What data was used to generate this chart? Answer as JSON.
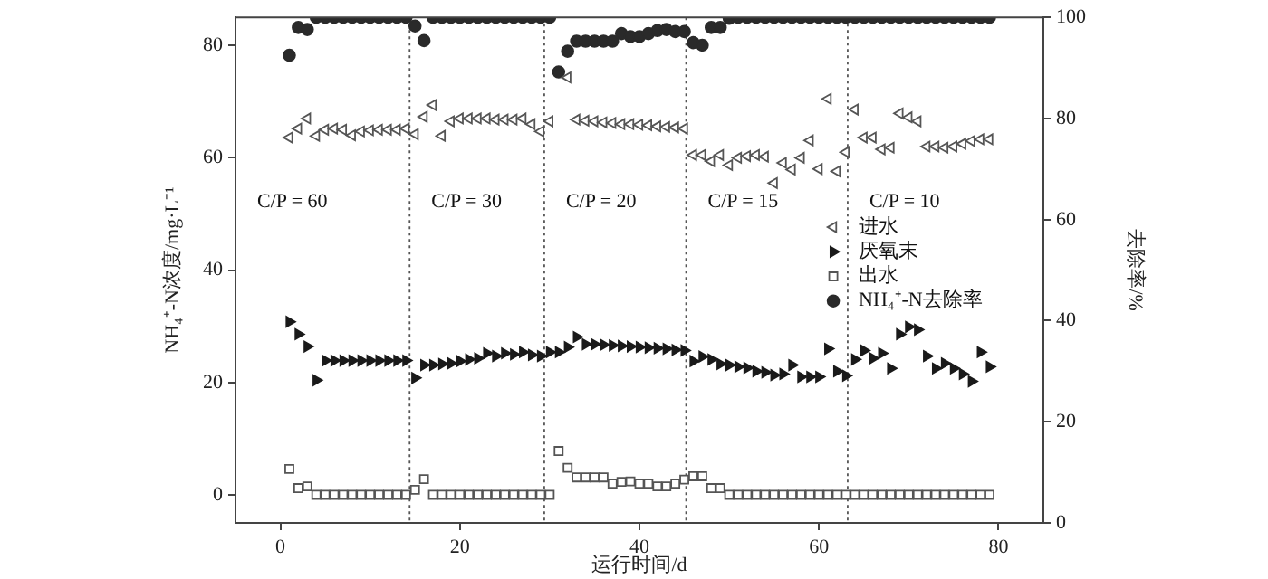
{
  "chart_data": {
    "type": "scatter",
    "xlabel": "运行时间/d",
    "ylabel": "NH₄⁺-N浓度/mg·L⁻¹",
    "y2label": "去除率/%",
    "xlim": [
      -5,
      85
    ],
    "xticks": [
      0,
      20,
      40,
      60,
      80
    ],
    "ylim": [
      -5,
      85
    ],
    "yticks": [
      0,
      20,
      40,
      60,
      80
    ],
    "y2lim": [
      0,
      100
    ],
    "y2ticks": [
      0,
      20,
      40,
      60,
      80,
      100
    ],
    "grid": false,
    "legend": "right",
    "x": [
      1,
      2,
      3,
      4,
      5,
      6,
      7,
      8,
      9,
      10,
      11,
      12,
      13,
      14,
      15,
      16,
      17,
      18,
      19,
      20,
      21,
      22,
      23,
      24,
      25,
      26,
      27,
      28,
      29,
      30,
      31,
      32,
      33,
      34,
      35,
      36,
      37,
      38,
      39,
      40,
      41,
      42,
      43,
      44,
      45,
      46,
      47,
      48,
      49,
      50,
      51,
      52,
      53,
      54,
      55,
      56,
      57,
      58,
      59,
      60,
      61,
      62,
      63,
      64,
      65,
      66,
      67,
      68,
      69,
      70,
      71,
      72,
      73,
      74,
      75,
      76,
      77,
      78,
      79
    ],
    "series": [
      {
        "name": "进水",
        "color": "#555555",
        "marker": "triangle",
        "values": [
          63.6,
          65.2,
          67,
          63.9,
          65,
          65.2,
          65,
          64,
          64.7,
          64.9,
          65,
          65,
          65,
          65.2,
          64.2,
          67.3,
          69.4,
          63.9,
          66.5,
          67,
          67,
          67,
          67,
          66.8,
          66.8,
          66.8,
          67,
          66,
          64.7,
          66.5,
          null,
          74.3,
          66.8,
          66.6,
          66.5,
          66.3,
          66.2,
          66,
          66,
          65.9,
          65.8,
          65.6,
          65.5,
          65.4,
          65.2,
          60.5,
          60.5,
          59.4,
          60.5,
          58.7,
          60,
          60.3,
          60.5,
          60.2,
          55.5,
          59.1,
          57.9,
          60,
          63.1,
          58,
          70.5,
          57.6,
          61,
          68.6,
          63.6,
          63.6,
          61.5,
          61.8,
          67.9,
          67.2,
          66.5,
          62,
          62,
          61.8,
          62,
          62.5,
          63,
          63.3,
          63.3
        ]
      },
      {
        "name": "厌氧末",
        "color": "#1a1a1a",
        "marker": "triangle",
        "values": [
          30.8,
          28.6,
          26.4,
          20.4,
          23.9,
          23.9,
          23.9,
          23.9,
          23.9,
          23.9,
          23.9,
          23.9,
          23.9,
          23.9,
          20.8,
          23.1,
          23.1,
          23.3,
          23.4,
          23.8,
          24.1,
          24.3,
          25.2,
          24.7,
          25.2,
          25,
          25.4,
          24.9,
          24.7,
          25.4,
          25.4,
          26.3,
          28.1,
          26.8,
          26.8,
          26.7,
          26.6,
          26.5,
          26.4,
          26.3,
          26.2,
          26.1,
          26,
          25.8,
          25.7,
          23.8,
          24.6,
          24.1,
          23.3,
          23.1,
          22.8,
          22.6,
          22,
          21.8,
          21.3,
          21.5,
          23.1,
          21,
          21,
          21,
          26,
          22,
          21.2,
          24.1,
          25.7,
          24.3,
          25.2,
          22.5,
          28.6,
          29.9,
          29.4,
          24.7,
          22.5,
          23.4,
          22.5,
          21.5,
          20.2,
          25.4,
          22.8
        ]
      },
      {
        "name": "出水",
        "color": "#555555",
        "marker": "square",
        "values": [
          4.6,
          1.2,
          1.5,
          0,
          0,
          0,
          0,
          0,
          0,
          0,
          0,
          0,
          0,
          0,
          0.9,
          2.8,
          0,
          0,
          0,
          0,
          0,
          0,
          0,
          0,
          0,
          0,
          0,
          0,
          0,
          0,
          7.8,
          4.8,
          3.1,
          3.1,
          3.1,
          3.1,
          2,
          2.3,
          2.4,
          2,
          2,
          1.5,
          1.5,
          2,
          2.7,
          3.3,
          3.3,
          1.2,
          1.2,
          0,
          0,
          0,
          0,
          0,
          0,
          0,
          0,
          0,
          0,
          0,
          0,
          0,
          0,
          0,
          0,
          0,
          0,
          0,
          0,
          0,
          0,
          0,
          0,
          0,
          0,
          0,
          0,
          0,
          0
        ]
      },
      {
        "name": "NH₄⁺-N去除率",
        "color": "#2a2a2a",
        "marker": "circle",
        "axis": "y2",
        "values": [
          92.5,
          98,
          97.6,
          100,
          100,
          100,
          100,
          100,
          100,
          100,
          100,
          100,
          100,
          100,
          98.3,
          95.4,
          100,
          100,
          100,
          100,
          100,
          100,
          100,
          100,
          100,
          100,
          100,
          100,
          100,
          100,
          89.2,
          93.3,
          95.3,
          95.3,
          95.3,
          95.3,
          95.3,
          96.8,
          96.2,
          96.2,
          96.8,
          97.4,
          97.6,
          97.2,
          97.2,
          95,
          94.5,
          98,
          98,
          99.8,
          100,
          100,
          100,
          100,
          100,
          100,
          100,
          100,
          100,
          100,
          100,
          100,
          100,
          100,
          100,
          100,
          100,
          100,
          100,
          100,
          100,
          100,
          100,
          100,
          100,
          100,
          100,
          100,
          100
        ]
      }
    ],
    "ref_lines": [
      {
        "axis": "x",
        "value": 14.4,
        "line_style": "dotted"
      },
      {
        "axis": "x",
        "value": 29.4,
        "line_style": "dotted"
      },
      {
        "axis": "x",
        "value": 45.2,
        "line_style": "dotted"
      },
      {
        "axis": "x",
        "value": 63.2,
        "line_style": "dotted"
      }
    ],
    "annotations": [
      "C/P = 60",
      "C/P = 30",
      "C/P = 20",
      "C/P = 15",
      "C/P = 10"
    ]
  }
}
